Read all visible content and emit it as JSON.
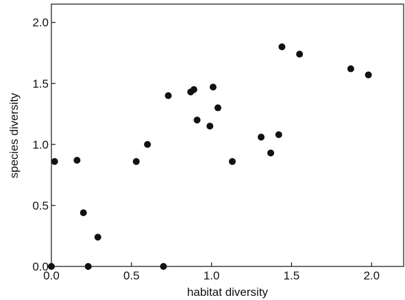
{
  "chart_data": {
    "type": "scatter",
    "title": "",
    "xlabel": "habitat diversity",
    "ylabel": "species diversity",
    "xlim": [
      0.0,
      2.2
    ],
    "ylim": [
      0.0,
      2.15
    ],
    "xticks": [
      0.0,
      0.5,
      1.0,
      1.5,
      2.0
    ],
    "xtick_labels": [
      "0.0",
      "0.5",
      "1.0",
      "1.5",
      "2.0"
    ],
    "yticks": [
      0.0,
      0.5,
      1.0,
      1.5,
      2.0
    ],
    "ytick_labels": [
      "0.0",
      "0.5",
      "1.0",
      "1.5",
      "2.0"
    ],
    "grid": false,
    "legend": "none",
    "marker_color": "#111111",
    "points": [
      {
        "x": 0.0,
        "y": 0.0
      },
      {
        "x": 0.02,
        "y": 0.86
      },
      {
        "x": 0.16,
        "y": 0.87
      },
      {
        "x": 0.2,
        "y": 0.44
      },
      {
        "x": 0.23,
        "y": 0.0
      },
      {
        "x": 0.29,
        "y": 0.24
      },
      {
        "x": 0.53,
        "y": 0.86
      },
      {
        "x": 0.6,
        "y": 1.0
      },
      {
        "x": 0.7,
        "y": 0.0
      },
      {
        "x": 0.73,
        "y": 1.4
      },
      {
        "x": 0.87,
        "y": 1.43
      },
      {
        "x": 0.89,
        "y": 1.45
      },
      {
        "x": 0.91,
        "y": 1.2
      },
      {
        "x": 0.99,
        "y": 1.15
      },
      {
        "x": 1.01,
        "y": 1.47
      },
      {
        "x": 1.04,
        "y": 1.3
      },
      {
        "x": 1.13,
        "y": 0.86
      },
      {
        "x": 1.31,
        "y": 1.06
      },
      {
        "x": 1.37,
        "y": 0.93
      },
      {
        "x": 1.42,
        "y": 1.08
      },
      {
        "x": 1.44,
        "y": 1.8
      },
      {
        "x": 1.55,
        "y": 1.74
      },
      {
        "x": 1.87,
        "y": 1.62
      },
      {
        "x": 1.98,
        "y": 1.57
      }
    ]
  }
}
